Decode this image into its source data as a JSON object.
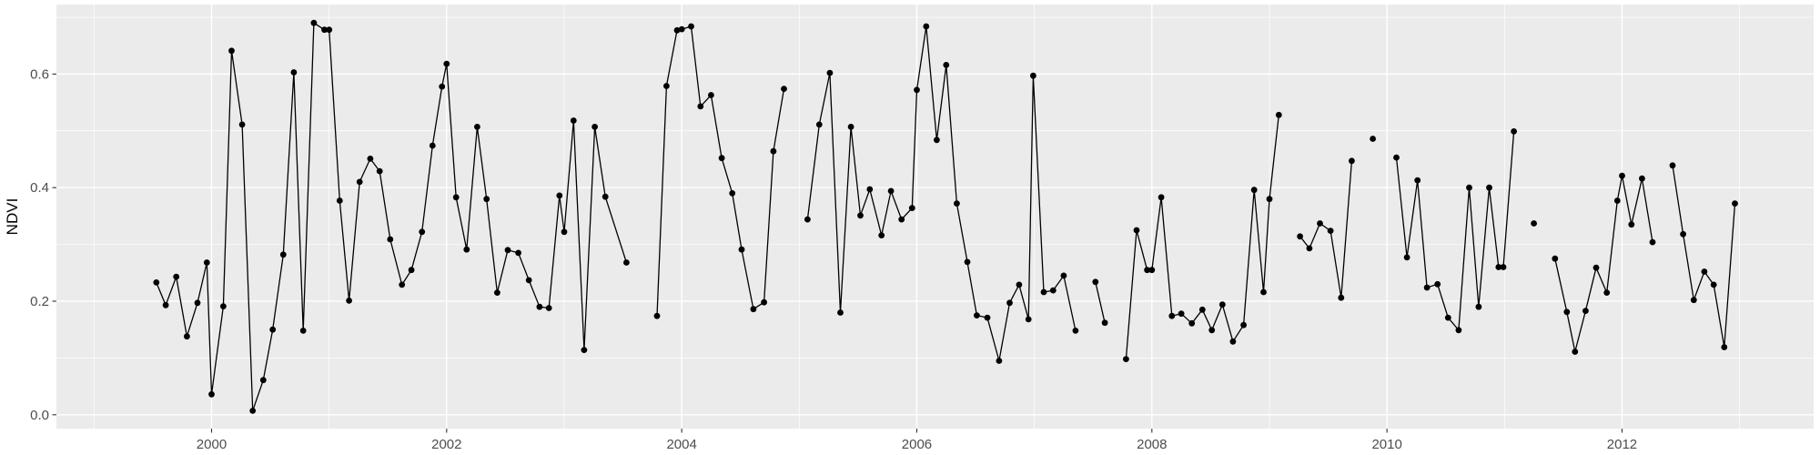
{
  "chart_data": {
    "type": "line",
    "title": "",
    "xlabel": "",
    "ylabel": "NDVI",
    "legend": "none",
    "grid": "major+minor",
    "xlim": [
      1998.68,
      2013.63
    ],
    "ylim": [
      -0.0244,
      0.7224
    ],
    "x_ticks": [
      2000,
      2002,
      2004,
      2006,
      2008,
      2010,
      2012
    ],
    "x_tick_labels": [
      "2000",
      "2002",
      "2004",
      "2006",
      "2008",
      "2010",
      "2012"
    ],
    "x_minor_ticks": [
      1999,
      2001,
      2003,
      2005,
      2007,
      2009,
      2011,
      2013
    ],
    "y_ticks": [
      0.0,
      0.2,
      0.4,
      0.6
    ],
    "y_tick_labels": [
      "0.0",
      "0.2",
      "0.4",
      "0.6"
    ],
    "y_minor_ticks": [
      0.1,
      0.3,
      0.5,
      0.7
    ],
    "colors": {
      "panel_bg": "#ebebeb",
      "grid": "#ffffff",
      "line": "#000000",
      "point": "#000000",
      "axis_text": "#4d4d4d",
      "axis_title": "#000000",
      "tick_mark": "#333333",
      "outer_bg": "#ffffff"
    },
    "segments": [
      {
        "points": [
          [
            1999.53,
            0.233
          ],
          [
            1999.61,
            0.193
          ],
          [
            1999.7,
            0.243
          ],
          [
            1999.79,
            0.138
          ],
          [
            1999.88,
            0.197
          ],
          [
            1999.96,
            0.268
          ],
          [
            2000.0,
            0.036
          ],
          [
            2000.1,
            0.191
          ],
          [
            2000.17,
            0.641
          ],
          [
            2000.26,
            0.511
          ],
          [
            2000.35,
            0.007
          ],
          [
            2000.44,
            0.061
          ],
          [
            2000.52,
            0.15
          ],
          [
            2000.61,
            0.282
          ],
          [
            2000.7,
            0.603
          ],
          [
            2000.78,
            0.148
          ],
          [
            2000.87,
            0.69
          ],
          [
            2000.96,
            0.678
          ],
          [
            2001.0,
            0.678
          ],
          [
            2001.09,
            0.377
          ],
          [
            2001.17,
            0.201
          ],
          [
            2001.26,
            0.41
          ],
          [
            2001.35,
            0.451
          ],
          [
            2001.43,
            0.429
          ],
          [
            2001.52,
            0.309
          ],
          [
            2001.62,
            0.229
          ],
          [
            2001.7,
            0.255
          ],
          [
            2001.79,
            0.322
          ],
          [
            2001.88,
            0.474
          ],
          [
            2001.96,
            0.578
          ],
          [
            2002.0,
            0.618
          ],
          [
            2002.08,
            0.383
          ],
          [
            2002.17,
            0.291
          ],
          [
            2002.26,
            0.507
          ],
          [
            2002.34,
            0.38
          ],
          [
            2002.43,
            0.215
          ],
          [
            2002.52,
            0.29
          ],
          [
            2002.61,
            0.285
          ],
          [
            2002.7,
            0.237
          ],
          [
            2002.79,
            0.19
          ],
          [
            2002.87,
            0.188
          ],
          [
            2002.96,
            0.386
          ],
          [
            2003.0,
            0.322
          ],
          [
            2003.08,
            0.518
          ],
          [
            2003.17,
            0.114
          ],
          [
            2003.26,
            0.507
          ],
          [
            2003.35,
            0.384
          ],
          [
            2003.53,
            0.268
          ]
        ]
      },
      {
        "points": [
          [
            2003.79,
            0.174
          ],
          [
            2003.87,
            0.579
          ],
          [
            2003.96,
            0.677
          ],
          [
            2004.0,
            0.679
          ],
          [
            2004.08,
            0.684
          ],
          [
            2004.16,
            0.543
          ],
          [
            2004.25,
            0.563
          ],
          [
            2004.34,
            0.452
          ],
          [
            2004.43,
            0.39
          ],
          [
            2004.51,
            0.291
          ],
          [
            2004.61,
            0.186
          ],
          [
            2004.7,
            0.198
          ],
          [
            2004.78,
            0.464
          ],
          [
            2004.87,
            0.574
          ]
        ]
      },
      {
        "points": [
          [
            2005.07,
            0.344
          ],
          [
            2005.17,
            0.511
          ],
          [
            2005.26,
            0.602
          ],
          [
            2005.35,
            0.18
          ],
          [
            2005.44,
            0.507
          ],
          [
            2005.52,
            0.351
          ],
          [
            2005.6,
            0.397
          ],
          [
            2005.7,
            0.316
          ],
          [
            2005.78,
            0.394
          ],
          [
            2005.87,
            0.344
          ],
          [
            2005.96,
            0.364
          ],
          [
            2006.0,
            0.572
          ],
          [
            2006.08,
            0.684
          ],
          [
            2006.17,
            0.484
          ],
          [
            2006.25,
            0.616
          ],
          [
            2006.34,
            0.372
          ],
          [
            2006.43,
            0.269
          ],
          [
            2006.51,
            0.175
          ],
          [
            2006.6,
            0.171
          ],
          [
            2006.7,
            0.095
          ],
          [
            2006.79,
            0.197
          ],
          [
            2006.87,
            0.229
          ],
          [
            2006.95,
            0.168
          ],
          [
            2006.99,
            0.597
          ],
          [
            2007.08,
            0.216
          ],
          [
            2007.16,
            0.219
          ],
          [
            2007.25,
            0.245
          ],
          [
            2007.35,
            0.148
          ]
        ]
      },
      {
        "points": [
          [
            2007.52,
            0.234
          ],
          [
            2007.6,
            0.162
          ]
        ]
      },
      {
        "points": [
          [
            2007.78,
            0.098
          ],
          [
            2007.87,
            0.325
          ],
          [
            2007.96,
            0.255
          ],
          [
            2008.0,
            0.255
          ],
          [
            2008.08,
            0.383
          ],
          [
            2008.17,
            0.174
          ],
          [
            2008.25,
            0.178
          ],
          [
            2008.34,
            0.161
          ],
          [
            2008.43,
            0.185
          ],
          [
            2008.51,
            0.149
          ],
          [
            2008.6,
            0.194
          ],
          [
            2008.69,
            0.129
          ],
          [
            2008.78,
            0.158
          ],
          [
            2008.87,
            0.396
          ],
          [
            2008.95,
            0.216
          ],
          [
            2009.0,
            0.38
          ],
          [
            2009.08,
            0.528
          ]
        ]
      },
      {
        "points": [
          [
            2009.26,
            0.314
          ],
          [
            2009.34,
            0.293
          ],
          [
            2009.43,
            0.337
          ],
          [
            2009.52,
            0.324
          ],
          [
            2009.61,
            0.206
          ],
          [
            2009.7,
            0.447
          ]
        ]
      },
      {
        "points": [
          [
            2009.88,
            0.486
          ]
        ]
      },
      {
        "points": [
          [
            2010.08,
            0.453
          ],
          [
            2010.17,
            0.277
          ],
          [
            2010.26,
            0.413
          ],
          [
            2010.34,
            0.224
          ],
          [
            2010.43,
            0.23
          ],
          [
            2010.52,
            0.171
          ],
          [
            2010.61,
            0.149
          ],
          [
            2010.7,
            0.4
          ],
          [
            2010.78,
            0.19
          ],
          [
            2010.87,
            0.4
          ],
          [
            2010.95,
            0.26
          ],
          [
            2010.99,
            0.26
          ],
          [
            2011.08,
            0.499
          ]
        ]
      },
      {
        "points": [
          [
            2011.25,
            0.337
          ]
        ]
      },
      {
        "points": [
          [
            2011.43,
            0.275
          ],
          [
            2011.53,
            0.181
          ],
          [
            2011.6,
            0.111
          ],
          [
            2011.69,
            0.183
          ],
          [
            2011.78,
            0.259
          ],
          [
            2011.87,
            0.215
          ],
          [
            2011.96,
            0.377
          ],
          [
            2012.0,
            0.421
          ],
          [
            2012.08,
            0.335
          ],
          [
            2012.17,
            0.416
          ],
          [
            2012.26,
            0.304
          ]
        ]
      },
      {
        "points": [
          [
            2012.43,
            0.439
          ],
          [
            2012.52,
            0.318
          ],
          [
            2012.61,
            0.202
          ],
          [
            2012.7,
            0.252
          ],
          [
            2012.78,
            0.229
          ],
          [
            2012.87,
            0.119
          ],
          [
            2012.96,
            0.372
          ]
        ]
      }
    ]
  }
}
